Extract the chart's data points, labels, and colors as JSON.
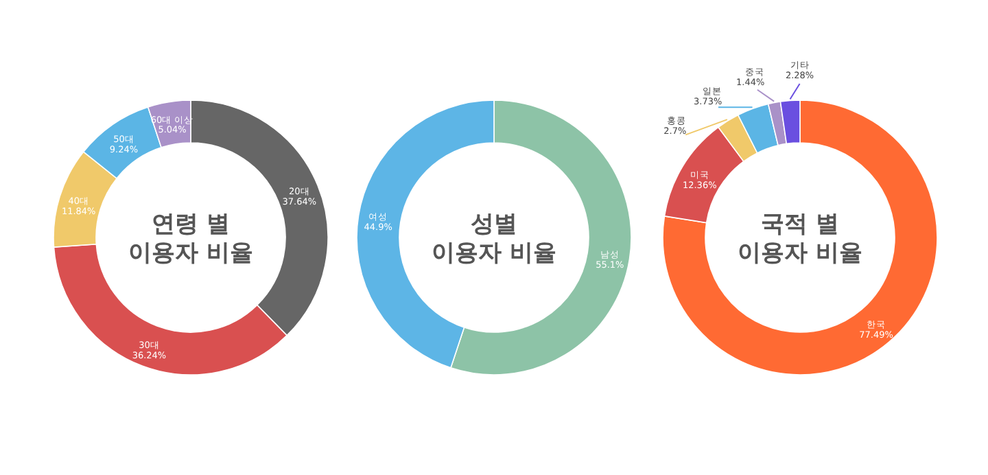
{
  "chart_data": [
    {
      "type": "donut",
      "title": "연령 별\n이용자 비율",
      "categories": [
        "20대",
        "30대",
        "40대",
        "50대",
        "60대 이상"
      ],
      "values": [
        37.64,
        36.24,
        11.84,
        9.24,
        5.04
      ],
      "value_labels": [
        "37.64%",
        "36.24%",
        "11.84%",
        "9.24%",
        "5.04%"
      ],
      "colors": [
        "#666666",
        "#d95050",
        "#f0c96a",
        "#5bb5e5",
        "#a991c8"
      ]
    },
    {
      "type": "donut",
      "title": "성별\n이용자 비율",
      "categories": [
        "남성",
        "여성"
      ],
      "values": [
        55.1,
        44.9
      ],
      "value_labels": [
        "55.1%",
        "44.9%"
      ],
      "colors": [
        "#8dc3a7",
        "#5db5e6"
      ]
    },
    {
      "type": "donut",
      "title": "국적 별\n이용자 비율",
      "categories": [
        "한국",
        "미국",
        "홍콩",
        "일본",
        "중국",
        "기타"
      ],
      "values": [
        77.49,
        12.36,
        2.7,
        3.73,
        1.44,
        2.28
      ],
      "value_labels": [
        "77.49%",
        "12.36%",
        "2.7%",
        "3.73%",
        "1.44%",
        "2.28%"
      ],
      "colors": [
        "#ff6a33",
        "#d95050",
        "#f0c96a",
        "#5bb5e5",
        "#a991c8",
        "#6a4fe0"
      ]
    }
  ]
}
